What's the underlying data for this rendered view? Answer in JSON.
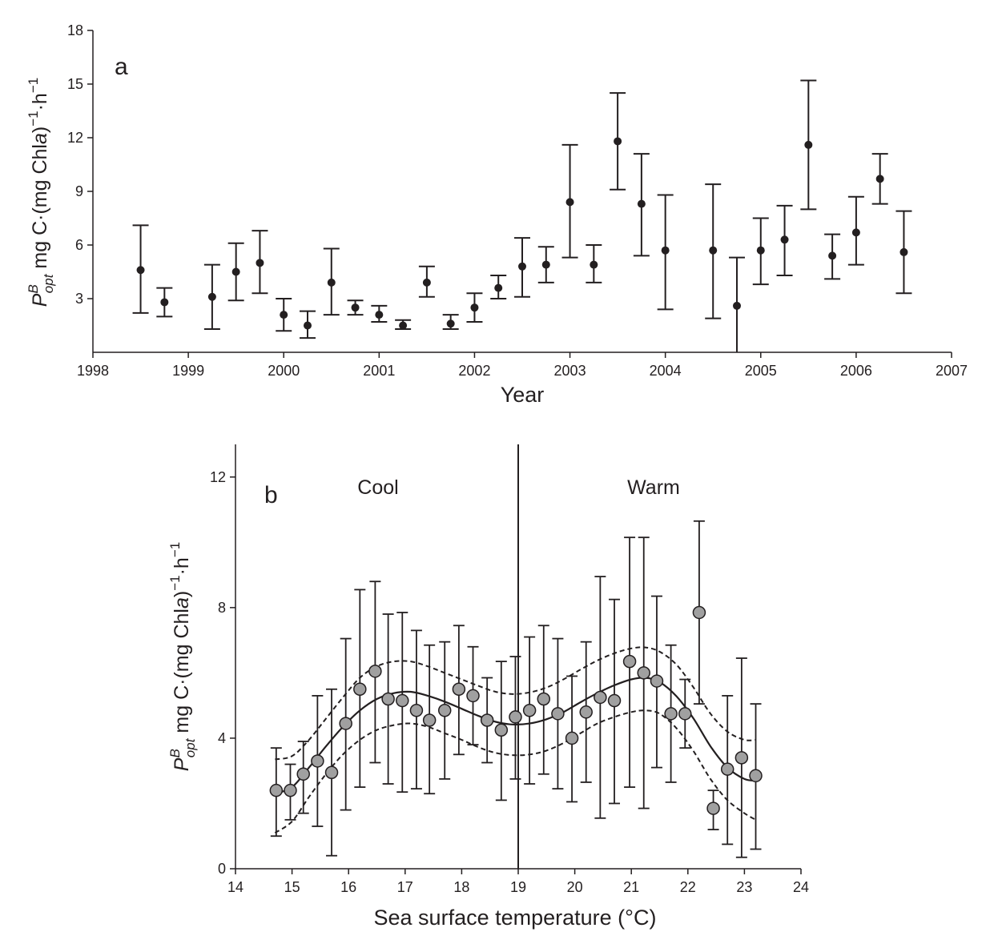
{
  "figure": {
    "panel_a": {
      "letter": "a",
      "xlabel": "Year",
      "ylabel": {
        "symbol": "P",
        "superscript": "B",
        "subscript": "opt",
        "units_pre": " mg C·(mg Chl",
        "units_italic": "a",
        "units_mid": ")",
        "units_exp": "−1",
        "units_post": "·h",
        "units_exp2": "−1"
      }
    },
    "panel_b": {
      "letter": "b",
      "xlabel": "Sea surface temperature (°C)",
      "region_left": "Cool",
      "region_right": "Warm",
      "ylabel": {
        "symbol": "P",
        "superscript": "B",
        "subscript": "opt",
        "units_pre": " mg C·(mg Chl",
        "units_italic": "a",
        "units_mid": ")",
        "units_exp": "−1",
        "units_post": "·h",
        "units_exp2": "−1"
      }
    }
  },
  "colors": {
    "ink": "#231f20",
    "marker_fill_b": "#a0a0a0"
  },
  "chart_data": [
    {
      "id": "a",
      "type": "scatter",
      "title": "a",
      "xlabel": "Year",
      "ylabel": "P^B_opt mg C·(mg Chl a)^-1·h^-1",
      "xlim": [
        1998,
        2007
      ],
      "ylim": [
        0,
        18
      ],
      "xticks": [
        1998,
        1999,
        2000,
        2001,
        2002,
        2003,
        2004,
        2005,
        2006,
        2007
      ],
      "yticks": [
        3,
        6,
        9,
        12,
        15,
        18
      ],
      "points": [
        {
          "x": 1998.5,
          "y": 4.6,
          "lo": 2.2,
          "hi": 7.1
        },
        {
          "x": 1998.75,
          "y": 2.8,
          "lo": 2.0,
          "hi": 3.6
        },
        {
          "x": 1999.25,
          "y": 3.1,
          "lo": 1.3,
          "hi": 4.9
        },
        {
          "x": 1999.5,
          "y": 4.5,
          "lo": 2.9,
          "hi": 6.1
        },
        {
          "x": 1999.75,
          "y": 5.0,
          "lo": 3.3,
          "hi": 6.8
        },
        {
          "x": 2000.0,
          "y": 2.1,
          "lo": 1.2,
          "hi": 3.0
        },
        {
          "x": 2000.25,
          "y": 1.5,
          "lo": 0.8,
          "hi": 2.3
        },
        {
          "x": 2000.5,
          "y": 3.9,
          "lo": 2.1,
          "hi": 5.8
        },
        {
          "x": 2000.75,
          "y": 2.5,
          "lo": 2.1,
          "hi": 2.9
        },
        {
          "x": 2001.0,
          "y": 2.1,
          "lo": 1.7,
          "hi": 2.6
        },
        {
          "x": 2001.25,
          "y": 1.5,
          "lo": 1.3,
          "hi": 1.8
        },
        {
          "x": 2001.5,
          "y": 3.9,
          "lo": 3.1,
          "hi": 4.8
        },
        {
          "x": 2001.75,
          "y": 1.6,
          "lo": 1.3,
          "hi": 2.1
        },
        {
          "x": 2002.0,
          "y": 2.5,
          "lo": 1.7,
          "hi": 3.3
        },
        {
          "x": 2002.25,
          "y": 3.6,
          "lo": 3.0,
          "hi": 4.3
        },
        {
          "x": 2002.5,
          "y": 4.8,
          "lo": 3.1,
          "hi": 6.4
        },
        {
          "x": 2002.75,
          "y": 4.9,
          "lo": 3.9,
          "hi": 5.9
        },
        {
          "x": 2003.0,
          "y": 8.4,
          "lo": 5.3,
          "hi": 11.6
        },
        {
          "x": 2003.25,
          "y": 4.9,
          "lo": 3.9,
          "hi": 6.0
        },
        {
          "x": 2003.5,
          "y": 11.8,
          "lo": 9.1,
          "hi": 14.5
        },
        {
          "x": 2003.75,
          "y": 8.3,
          "lo": 5.4,
          "hi": 11.1
        },
        {
          "x": 2004.0,
          "y": 5.7,
          "lo": 2.4,
          "hi": 8.8
        },
        {
          "x": 2004.5,
          "y": 5.7,
          "lo": 1.9,
          "hi": 9.4
        },
        {
          "x": 2004.75,
          "y": 2.6,
          "lo": 0.0,
          "hi": 5.3
        },
        {
          "x": 2005.0,
          "y": 5.7,
          "lo": 3.8,
          "hi": 7.5
        },
        {
          "x": 2005.25,
          "y": 6.3,
          "lo": 4.3,
          "hi": 8.2
        },
        {
          "x": 2005.5,
          "y": 11.6,
          "lo": 8.0,
          "hi": 15.2
        },
        {
          "x": 2005.75,
          "y": 5.4,
          "lo": 4.1,
          "hi": 6.6
        },
        {
          "x": 2006.0,
          "y": 6.7,
          "lo": 4.9,
          "hi": 8.7
        },
        {
          "x": 2006.25,
          "y": 9.7,
          "lo": 8.3,
          "hi": 11.1
        },
        {
          "x": 2006.5,
          "y": 5.6,
          "lo": 3.3,
          "hi": 7.9
        }
      ]
    },
    {
      "id": "b",
      "type": "scatter",
      "title": "b",
      "xlabel": "Sea surface temperature (°C)",
      "ylabel": "P^B_opt mg C·(mg Chl a)^-1·h^-1",
      "xlim": [
        14,
        24
      ],
      "ylim": [
        0,
        13
      ],
      "xticks": [
        14,
        15,
        16,
        17,
        18,
        19,
        20,
        21,
        22,
        23,
        24
      ],
      "yticks": [
        0,
        4,
        8,
        12
      ],
      "divider_x": 19,
      "regions": [
        "Cool",
        "Warm"
      ],
      "points": [
        {
          "x": 14.72,
          "y": 2.4,
          "lo": 1.0,
          "hi": 3.7
        },
        {
          "x": 14.97,
          "y": 2.4,
          "lo": 1.5,
          "hi": 3.2
        },
        {
          "x": 15.2,
          "y": 2.9,
          "lo": 1.7,
          "hi": 3.9
        },
        {
          "x": 15.45,
          "y": 3.3,
          "lo": 1.3,
          "hi": 5.3
        },
        {
          "x": 15.7,
          "y": 2.95,
          "lo": 0.4,
          "hi": 5.5
        },
        {
          "x": 15.95,
          "y": 4.45,
          "lo": 1.8,
          "hi": 7.05
        },
        {
          "x": 16.2,
          "y": 5.5,
          "lo": 2.5,
          "hi": 8.55
        },
        {
          "x": 16.47,
          "y": 6.05,
          "lo": 3.25,
          "hi": 8.8
        },
        {
          "x": 16.7,
          "y": 5.2,
          "lo": 2.6,
          "hi": 7.8
        },
        {
          "x": 16.95,
          "y": 5.15,
          "lo": 2.35,
          "hi": 7.85
        },
        {
          "x": 17.2,
          "y": 4.85,
          "lo": 2.45,
          "hi": 7.3
        },
        {
          "x": 17.43,
          "y": 4.55,
          "lo": 2.3,
          "hi": 6.85
        },
        {
          "x": 17.7,
          "y": 4.85,
          "lo": 2.75,
          "hi": 6.95
        },
        {
          "x": 17.95,
          "y": 5.5,
          "lo": 3.5,
          "hi": 7.45
        },
        {
          "x": 18.2,
          "y": 5.3,
          "lo": 3.8,
          "hi": 6.8
        },
        {
          "x": 18.45,
          "y": 4.55,
          "lo": 3.25,
          "hi": 5.85
        },
        {
          "x": 18.7,
          "y": 4.25,
          "lo": 2.1,
          "hi": 6.35
        },
        {
          "x": 18.95,
          "y": 4.65,
          "lo": 2.75,
          "hi": 6.5
        },
        {
          "x": 19.2,
          "y": 4.85,
          "lo": 2.6,
          "hi": 7.1
        },
        {
          "x": 19.45,
          "y": 5.2,
          "lo": 2.9,
          "hi": 7.45
        },
        {
          "x": 19.7,
          "y": 4.75,
          "lo": 2.45,
          "hi": 7.05
        },
        {
          "x": 19.95,
          "y": 4.0,
          "lo": 2.05,
          "hi": 5.9
        },
        {
          "x": 20.2,
          "y": 4.8,
          "lo": 2.65,
          "hi": 6.95
        },
        {
          "x": 20.45,
          "y": 5.25,
          "lo": 1.55,
          "hi": 8.95
        },
        {
          "x": 20.7,
          "y": 5.15,
          "lo": 2.0,
          "hi": 8.25
        },
        {
          "x": 20.97,
          "y": 6.35,
          "lo": 2.5,
          "hi": 10.15
        },
        {
          "x": 21.22,
          "y": 6.0,
          "lo": 1.85,
          "hi": 10.15
        },
        {
          "x": 21.45,
          "y": 5.75,
          "lo": 3.1,
          "hi": 8.35
        },
        {
          "x": 21.7,
          "y": 4.75,
          "lo": 2.65,
          "hi": 6.85
        },
        {
          "x": 21.95,
          "y": 4.75,
          "lo": 3.7,
          "hi": 5.8
        },
        {
          "x": 22.2,
          "y": 7.85,
          "lo": 5.05,
          "hi": 10.65
        },
        {
          "x": 22.45,
          "y": 1.85,
          "lo": 1.2,
          "hi": 2.4
        },
        {
          "x": 22.7,
          "y": 3.05,
          "lo": 0.75,
          "hi": 5.3
        },
        {
          "x": 22.95,
          "y": 3.4,
          "lo": 0.35,
          "hi": 6.45
        },
        {
          "x": 23.2,
          "y": 2.85,
          "lo": 0.6,
          "hi": 5.05
        }
      ],
      "fit": {
        "x": [
          14.7,
          15.0,
          15.3,
          15.6,
          15.9,
          16.2,
          16.5,
          16.8,
          17.1,
          17.4,
          17.7,
          18.0,
          18.3,
          18.6,
          18.9,
          19.2,
          19.5,
          19.8,
          20.1,
          20.4,
          20.7,
          21.0,
          21.25,
          21.5,
          21.8,
          22.1,
          22.4,
          22.7,
          23.0,
          23.2
        ],
        "y": [
          2.3,
          2.5,
          3.1,
          3.75,
          4.35,
          4.85,
          5.2,
          5.38,
          5.42,
          5.3,
          5.12,
          4.9,
          4.68,
          4.5,
          4.42,
          4.45,
          4.58,
          4.8,
          5.1,
          5.38,
          5.62,
          5.8,
          5.85,
          5.72,
          5.28,
          4.6,
          3.75,
          3.1,
          2.75,
          2.7
        ]
      },
      "ci_upper": {
        "x": [
          14.7,
          15.0,
          15.3,
          15.6,
          15.9,
          16.2,
          16.5,
          16.8,
          17.1,
          17.4,
          17.7,
          18.0,
          18.3,
          18.6,
          18.9,
          19.2,
          19.5,
          19.8,
          20.1,
          20.4,
          20.7,
          21.0,
          21.25,
          21.5,
          21.8,
          22.1,
          22.4,
          22.7,
          23.0,
          23.2
        ],
        "y": [
          3.35,
          3.45,
          3.95,
          4.6,
          5.25,
          5.85,
          6.2,
          6.35,
          6.35,
          6.2,
          6.0,
          5.8,
          5.6,
          5.42,
          5.35,
          5.4,
          5.55,
          5.8,
          6.1,
          6.38,
          6.6,
          6.75,
          6.78,
          6.65,
          6.25,
          5.55,
          4.75,
          4.2,
          3.95,
          3.95
        ]
      },
      "ci_lower": {
        "x": [
          14.7,
          15.0,
          15.3,
          15.6,
          15.9,
          16.2,
          16.5,
          16.8,
          17.1,
          17.4,
          17.7,
          18.0,
          18.3,
          18.6,
          18.9,
          19.2,
          19.5,
          19.8,
          20.1,
          20.4,
          20.7,
          21.0,
          21.25,
          21.5,
          21.8,
          22.1,
          22.4,
          22.7,
          23.0,
          23.2
        ],
        "y": [
          1.1,
          1.45,
          2.2,
          2.9,
          3.5,
          3.95,
          4.25,
          4.4,
          4.45,
          4.35,
          4.15,
          3.95,
          3.72,
          3.55,
          3.48,
          3.5,
          3.62,
          3.85,
          4.15,
          4.45,
          4.65,
          4.8,
          4.85,
          4.75,
          4.3,
          3.6,
          2.75,
          2.1,
          1.7,
          1.5
        ]
      }
    }
  ]
}
